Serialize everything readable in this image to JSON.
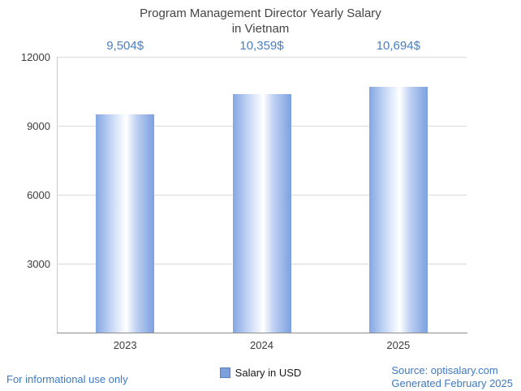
{
  "title": "Program Management Director Yearly Salary\nin Vietnam",
  "chart_data": {
    "type": "bar",
    "title": "Program Management Director Yearly Salary in Vietnam",
    "categories": [
      "2023",
      "2024",
      "2025"
    ],
    "values": [
      9504,
      10359,
      10694
    ],
    "value_labels": [
      "9,504$",
      "10,359$",
      "10,694$"
    ],
    "xlabel": "",
    "ylabel": "",
    "ylim": [
      0,
      12000
    ],
    "yticks": [
      3000,
      6000,
      9000,
      12000
    ],
    "grid": true,
    "legend": {
      "label": "Salary in USD",
      "position": "bottom"
    },
    "bar_color": "#7da0e0",
    "value_label_color": "#4a7ebd"
  },
  "footer": {
    "disclaimer": "For informational use only",
    "source": "Source: optisalary.com",
    "generated": "Generated February 2025"
  },
  "colors": {
    "accent_blue": "#3d79c2",
    "title_text": "#454545",
    "gridline": "#d9d9d9"
  }
}
